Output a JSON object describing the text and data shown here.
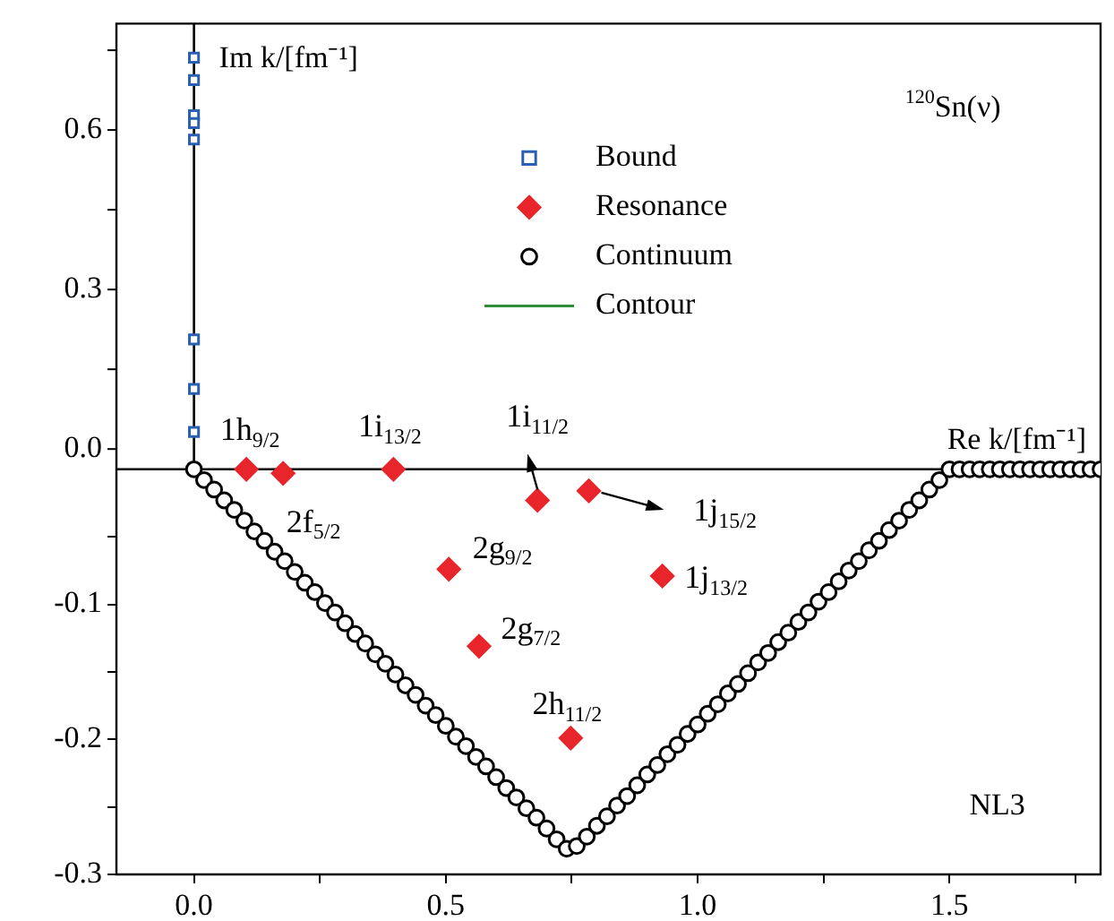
{
  "chart_data": {
    "type": "scatter",
    "xlim": [
      -0.154,
      1.8
    ],
    "xticks": [
      {
        "value": 0,
        "label": "0.0"
      },
      {
        "value": 0.25,
        "label": null
      },
      0.5,
      {
        "value": 0.75,
        "label": null
      },
      {
        "value": 1,
        "label": "1.0"
      },
      {
        "value": 1.25,
        "label": null
      },
      1.5,
      {
        "value": 1.75,
        "label": null
      }
    ],
    "ylim": [
      -0.3,
      0.33
    ],
    "yticks": [
      -0.3,
      {
        "value": -0.25,
        "label": null
      },
      -0.2,
      {
        "value": -0.15,
        "label": null
      },
      -0.1,
      {
        "value": -0.05,
        "label": null
      }
    ],
    "y2lim": [
      -0.8,
      0.8
    ],
    "y2ticks": [
      {
        "value": 0,
        "label": "0.0"
      },
      {
        "value": 0.15,
        "label": null
      },
      0.3,
      {
        "value": 0.45,
        "label": null
      },
      0.6,
      {
        "value": 0.75,
        "label": null
      }
    ],
    "grid": false,
    "legend": "top",
    "series": [
      {
        "name": "Bound",
        "color": "#2b5fb0",
        "marker": "square",
        "axis": "y2",
        "x": [
          0,
          0,
          0,
          0,
          0,
          0,
          0,
          0
        ],
        "values": [
          0.736,
          0.694,
          0.628,
          0.613,
          0.582,
          0.206,
          0.113,
          0.032
        ]
      },
      {
        "name": "Resonance",
        "color": "#e8252b",
        "marker": "diamond",
        "x": [
          0.104,
          0.177,
          0.396,
          0.682,
          0.784,
          0.506,
          0.566,
          0.748,
          0.93
        ],
        "values": [
          0,
          -0.003,
          0,
          -0.023,
          -0.016,
          -0.074,
          -0.131,
          -0.199,
          -0.079
        ]
      },
      {
        "name": "Continuum",
        "color": "#000000",
        "marker": "circle",
        "x": [
          0,
          0.02,
          0.04,
          0.06,
          0.08,
          0.1,
          0.12,
          0.14,
          0.16,
          0.18,
          0.2,
          0.22,
          0.24,
          0.26,
          0.28,
          0.3,
          0.32,
          0.34,
          0.36,
          0.38,
          0.4,
          0.42,
          0.44,
          0.46,
          0.48,
          0.5,
          0.52,
          0.54,
          0.56,
          0.58,
          0.6,
          0.62,
          0.64,
          0.66,
          0.68,
          0.7,
          0.72,
          0.74,
          0.76,
          0.78,
          0.8,
          0.82,
          0.84,
          0.86,
          0.88,
          0.9,
          0.92,
          0.94,
          0.96,
          0.98,
          1,
          1.02,
          1.04,
          1.06,
          1.08,
          1.1,
          1.12,
          1.14,
          1.16,
          1.18,
          1.2,
          1.22,
          1.24,
          1.26,
          1.28,
          1.3,
          1.32,
          1.34,
          1.36,
          1.38,
          1.4,
          1.42,
          1.44,
          1.46,
          1.48,
          1.5,
          1.52,
          1.54,
          1.56,
          1.58,
          1.6,
          1.62,
          1.64,
          1.66,
          1.68,
          1.7,
          1.72,
          1.74,
          1.76,
          1.78,
          1.8
        ],
        "values": [
          0,
          -0.008,
          -0.015,
          -0.023,
          -0.03,
          -0.038,
          -0.046,
          -0.053,
          -0.061,
          -0.068,
          -0.076,
          -0.084,
          -0.091,
          -0.099,
          -0.106,
          -0.114,
          -0.122,
          -0.129,
          -0.137,
          -0.144,
          -0.152,
          -0.16,
          -0.167,
          -0.175,
          -0.182,
          -0.19,
          -0.198,
          -0.205,
          -0.213,
          -0.22,
          -0.228,
          -0.236,
          -0.243,
          -0.251,
          -0.258,
          -0.266,
          -0.274,
          -0.281,
          -0.279,
          -0.272,
          -0.264,
          -0.257,
          -0.249,
          -0.242,
          -0.234,
          -0.226,
          -0.219,
          -0.211,
          -0.204,
          -0.196,
          -0.189,
          -0.181,
          -0.174,
          -0.166,
          -0.159,
          -0.151,
          -0.143,
          -0.136,
          -0.128,
          -0.121,
          -0.113,
          -0.106,
          -0.098,
          -0.091,
          -0.083,
          -0.075,
          -0.068,
          -0.06,
          -0.053,
          -0.045,
          -0.038,
          -0.03,
          -0.023,
          -0.015,
          -0.008,
          0,
          0,
          0,
          0,
          0,
          0,
          0,
          0,
          0,
          0,
          0,
          0,
          0,
          0,
          0,
          0
        ]
      },
      {
        "name": "Contour",
        "color": "#2e8b3a",
        "type": "line"
      }
    ],
    "ref_lines": [
      {
        "axis": "x",
        "value": 0,
        "label": "Im k/[fm⁻¹]"
      },
      {
        "axis": "y",
        "value": 0,
        "label": "Re k/[fm⁻¹]"
      }
    ],
    "annotations": [
      {
        "text": "1h$_{9/2}$",
        "x": 0.104,
        "y": 0
      },
      {
        "text": "2f$_{5/2}$",
        "x": 0.177,
        "y": -0.003
      },
      {
        "text": "1i$_{13/2}$",
        "x": 0.396,
        "y": 0
      },
      {
        "text": "1i$_{11/2}$",
        "x": 0.682,
        "y": -0.023
      },
      {
        "text": "1j$_{15/2}$",
        "x": 0.784,
        "y": -0.016
      },
      {
        "text": "2g$_{9/2}$",
        "x": 0.506,
        "y": -0.074
      },
      {
        "text": "2g$_{7/2}$",
        "x": 0.566,
        "y": -0.131
      },
      {
        "text": "2h$_{11/2}$",
        "x": 0.748,
        "y": -0.199
      },
      {
        "text": "1j$_{13/2}$",
        "x": 0.93,
        "y": -0.079
      },
      "$^{120}$Sn(ν)",
      "NL3"
    ]
  }
}
